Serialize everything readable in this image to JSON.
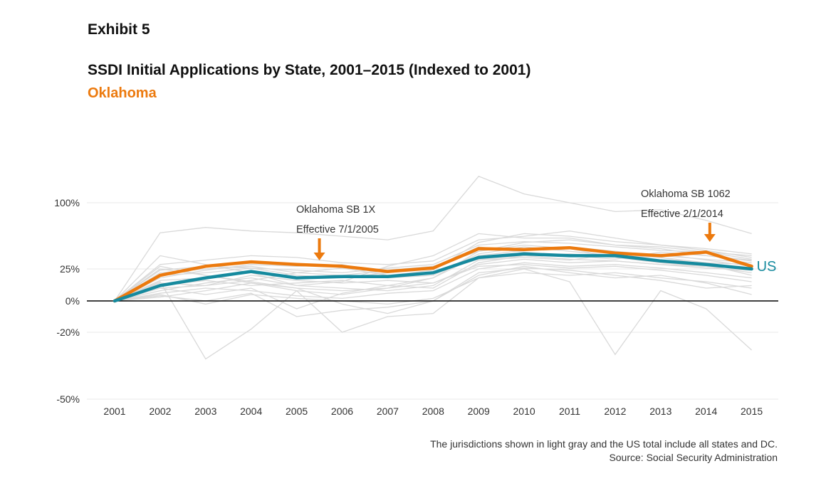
{
  "header": {
    "exhibit": "Exhibit 5",
    "title": "SSDI Initial Applications by State, 2001–2015 (Indexed to 2001)",
    "subtitle": "Oklahoma"
  },
  "footnote": {
    "line1": "The jurisdictions shown in light gray and the US total include all states and DC.",
    "line2": "Source: Social Security Administration"
  },
  "colors": {
    "highlight": "#ec7a0e",
    "us": "#168a9e",
    "states": "#d9d9d9",
    "zero_line": "#000000",
    "gridline": "#e8e8e8"
  },
  "chart_data": {
    "type": "line",
    "x": [
      2001,
      2002,
      2003,
      2004,
      2005,
      2006,
      2007,
      2008,
      2009,
      2010,
      2011,
      2012,
      2013,
      2014,
      2015
    ],
    "y_ticks": [
      {
        "value": 100,
        "label": "100%"
      },
      {
        "value": 25,
        "label": "25%"
      },
      {
        "value": 0,
        "label": "0%"
      },
      {
        "value": -20,
        "label": "-20%"
      },
      {
        "value": -50,
        "label": "-50%"
      }
    ],
    "series": [
      {
        "name": "Oklahoma",
        "role": "highlight",
        "values": [
          0,
          20,
          28,
          33,
          30,
          28,
          23,
          26,
          48,
          47,
          49,
          43,
          40,
          44,
          28
        ]
      },
      {
        "name": "US",
        "role": "us",
        "values": [
          0,
          12,
          18,
          23,
          18,
          19,
          19,
          22,
          38,
          42,
          40,
          40,
          34,
          30,
          25
        ]
      }
    ],
    "background_series": [
      [
        0,
        66,
        72,
        68,
        66,
        62,
        58,
        68,
        130,
        110,
        100,
        90,
        92,
        80,
        65
      ],
      [
        0,
        15,
        -32,
        -18,
        8,
        -20,
        -10,
        -8,
        18,
        25,
        15,
        -30,
        8,
        -5,
        -28
      ],
      [
        0,
        40,
        30,
        22,
        12,
        15,
        28,
        40,
        65,
        60,
        60,
        52,
        50,
        44,
        40
      ],
      [
        0,
        28,
        20,
        15,
        10,
        8,
        10,
        14,
        30,
        36,
        32,
        34,
        30,
        28,
        22
      ],
      [
        0,
        5,
        -2,
        5,
        2,
        0,
        -2,
        2,
        18,
        22,
        20,
        22,
        18,
        15,
        10
      ],
      [
        0,
        22,
        25,
        28,
        22,
        20,
        18,
        20,
        42,
        50,
        45,
        40,
        38,
        30,
        20
      ],
      [
        0,
        10,
        5,
        10,
        -5,
        6,
        12,
        10,
        32,
        40,
        42,
        38,
        32,
        28,
        25
      ],
      [
        0,
        18,
        24,
        30,
        28,
        30,
        20,
        24,
        55,
        65,
        62,
        56,
        52,
        48,
        42
      ],
      [
        0,
        8,
        14,
        18,
        12,
        10,
        8,
        12,
        35,
        38,
        35,
        42,
        38,
        32,
        30
      ],
      [
        0,
        25,
        20,
        14,
        8,
        5,
        10,
        18,
        45,
        52,
        48,
        38,
        42,
        35,
        28
      ],
      [
        0,
        14,
        12,
        20,
        16,
        14,
        16,
        14,
        28,
        30,
        26,
        28,
        24,
        20,
        15
      ],
      [
        0,
        30,
        35,
        40,
        38,
        32,
        30,
        34,
        58,
        62,
        68,
        60,
        52,
        46,
        38
      ],
      [
        0,
        3,
        8,
        14,
        10,
        -2,
        -8,
        0,
        20,
        28,
        22,
        18,
        20,
        14,
        5
      ],
      [
        0,
        20,
        22,
        26,
        20,
        18,
        22,
        26,
        50,
        44,
        40,
        36,
        44,
        40,
        35
      ],
      [
        0,
        12,
        16,
        12,
        14,
        16,
        12,
        18,
        40,
        46,
        50,
        45,
        40,
        36,
        32
      ],
      [
        0,
        6,
        10,
        8,
        4,
        2,
        6,
        8,
        25,
        32,
        28,
        30,
        26,
        22,
        18
      ],
      [
        0,
        16,
        18,
        22,
        18,
        20,
        24,
        28,
        45,
        55,
        58,
        52,
        48,
        40,
        34
      ],
      [
        0,
        10,
        12,
        16,
        22,
        26,
        20,
        22,
        36,
        40,
        36,
        34,
        30,
        26,
        24
      ],
      [
        0,
        4,
        0,
        6,
        -10,
        -6,
        -4,
        0,
        22,
        26,
        24,
        20,
        16,
        10,
        12
      ],
      [
        0,
        24,
        28,
        26,
        24,
        22,
        26,
        30,
        52,
        56,
        54,
        50,
        46,
        44,
        36
      ]
    ],
    "annotations": [
      {
        "lines": [
          "Oklahoma SB 1X",
          "Effective 7/1/2005"
        ],
        "x": 2005.5
      },
      {
        "lines": [
          "Oklahoma SB 1062",
          "Effective 2/1/2014"
        ],
        "x": 2014.08
      }
    ],
    "end_label": "US"
  }
}
